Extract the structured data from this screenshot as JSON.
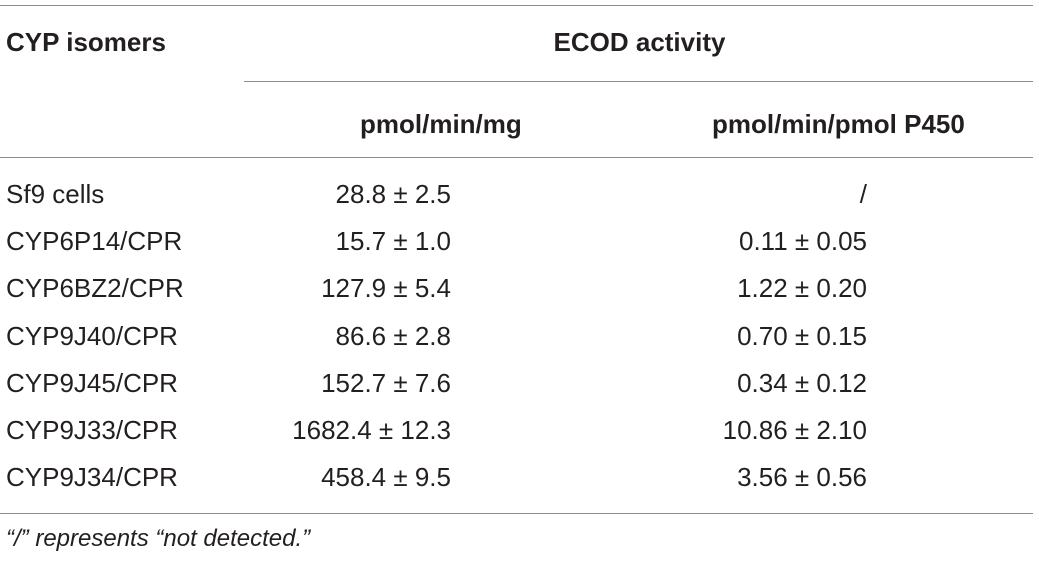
{
  "table": {
    "header": {
      "row_label_header": "CYP isomers",
      "group_header": "ECOD activity",
      "col1": "pmol/min/mg",
      "col2": "pmol/min/pmol P450"
    },
    "rows": [
      {
        "label": "Sf9 cells",
        "col1": "28.8 ± 2.5",
        "col2": "/"
      },
      {
        "label": "CYP6P14/CPR",
        "col1": "15.7 ± 1.0",
        "col2": "0.11 ± 0.05"
      },
      {
        "label": "CYP6BZ2/CPR",
        "col1": "127.9 ± 5.4",
        "col2": "1.22 ± 0.20"
      },
      {
        "label": "CYP9J40/CPR",
        "col1": "86.6 ± 2.8",
        "col2": "0.70 ± 0.15"
      },
      {
        "label": "CYP9J45/CPR",
        "col1": "152.7 ± 7.6",
        "col2": "0.34 ± 0.12"
      },
      {
        "label": "CYP9J33/CPR",
        "col1": "1682.4 ± 12.3",
        "col2": "10.86 ± 2.10"
      },
      {
        "label": "CYP9J34/CPR",
        "col1": "458.4 ± 9.5",
        "col2": "3.56 ± 0.56"
      }
    ],
    "footnote": "“/” represents “not detected.”"
  }
}
